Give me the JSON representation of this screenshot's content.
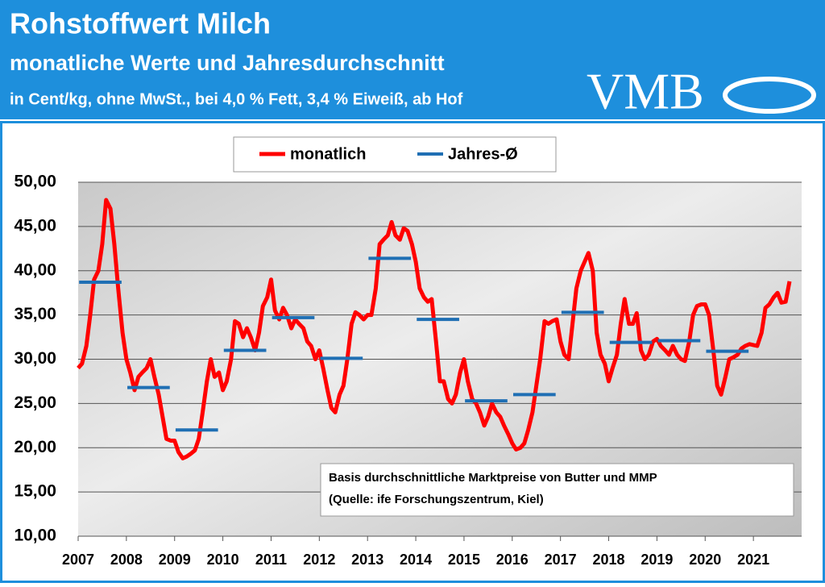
{
  "header": {
    "title": "Rohstoffwert Milch",
    "subtitle": "monatliche Werte und Jahresdurchschnitt",
    "unit_note": "in Cent/kg, ohne MwSt., bei 4,0 % Fett, 3,4 % Eiweiß, ab Hof",
    "logo": "VMB"
  },
  "chart_data": {
    "type": "line",
    "annotation": [
      "Basis durchschnittliche  Marktpreise  von Butter und MMP",
      "(Quelle: ife Forschungszentrum,  Kiel)"
    ],
    "xlim": [
      2007,
      2022
    ],
    "xticks": [
      2007,
      2008,
      2009,
      2010,
      2011,
      2012,
      2013,
      2014,
      2015,
      2016,
      2017,
      2018,
      2019,
      2020,
      2021
    ],
    "ylim": [
      10,
      50
    ],
    "yticks": [
      {
        "value": 10,
        "label": "10,00"
      },
      {
        "value": 15,
        "label": "15,00"
      },
      {
        "value": 20,
        "label": "20,00"
      },
      {
        "value": 25,
        "label": "25,00"
      },
      {
        "value": 30,
        "label": "30,00"
      },
      {
        "value": 35,
        "label": "35,00"
      },
      {
        "value": 40,
        "label": "40,00"
      },
      {
        "value": 45,
        "label": "45,00"
      },
      {
        "value": 50,
        "label": "50,00"
      }
    ],
    "grid": true,
    "legend": "top",
    "series": [
      {
        "name": "monatlich",
        "color": "#ff0000",
        "x": [
          2007,
          2007.08,
          2007.17,
          2007.25,
          2007.33,
          2007.42,
          2007.5,
          2007.58,
          2007.67,
          2007.75,
          2007.83,
          2007.92,
          2008,
          2008.08,
          2008.17,
          2008.25,
          2008.33,
          2008.42,
          2008.5,
          2008.58,
          2008.67,
          2008.75,
          2008.83,
          2008.92,
          2009,
          2009.08,
          2009.17,
          2009.25,
          2009.33,
          2009.42,
          2009.5,
          2009.58,
          2009.67,
          2009.75,
          2009.83,
          2009.92,
          2010,
          2010.08,
          2010.17,
          2010.25,
          2010.33,
          2010.42,
          2010.5,
          2010.58,
          2010.67,
          2010.75,
          2010.83,
          2010.92,
          2011,
          2011.08,
          2011.17,
          2011.25,
          2011.33,
          2011.42,
          2011.5,
          2011.58,
          2011.67,
          2011.75,
          2011.83,
          2011.92,
          2012,
          2012.08,
          2012.17,
          2012.25,
          2012.33,
          2012.42,
          2012.5,
          2012.58,
          2012.67,
          2012.75,
          2012.83,
          2012.92,
          2013,
          2013.08,
          2013.17,
          2013.25,
          2013.33,
          2013.42,
          2013.5,
          2013.58,
          2013.67,
          2013.75,
          2013.83,
          2013.92,
          2014,
          2014.08,
          2014.17,
          2014.25,
          2014.33,
          2014.42,
          2014.5,
          2014.58,
          2014.67,
          2014.75,
          2014.83,
          2014.92,
          2015,
          2015.08,
          2015.17,
          2015.25,
          2015.33,
          2015.42,
          2015.5,
          2015.58,
          2015.67,
          2015.75,
          2015.83,
          2015.92,
          2016,
          2016.08,
          2016.17,
          2016.25,
          2016.33,
          2016.42,
          2016.5,
          2016.58,
          2016.67,
          2016.75,
          2016.83,
          2016.92,
          2017,
          2017.08,
          2017.17,
          2017.25,
          2017.33,
          2017.42,
          2017.5,
          2017.58,
          2017.67,
          2017.75,
          2017.83,
          2017.92,
          2018,
          2018.08,
          2018.17,
          2018.25,
          2018.33,
          2018.42,
          2018.5,
          2018.58,
          2018.67,
          2018.75,
          2018.83,
          2018.92,
          2019,
          2019.08,
          2019.17,
          2019.25,
          2019.33,
          2019.42,
          2019.5,
          2019.58,
          2019.67,
          2019.75,
          2019.83,
          2019.92,
          2020,
          2020.08,
          2020.17,
          2020.25,
          2020.33,
          2020.42,
          2020.5,
          2020.58,
          2020.67,
          2020.75,
          2020.83,
          2020.92,
          2021,
          2021.08,
          2021.17,
          2021.25,
          2021.33,
          2021.42,
          2021.5,
          2021.58,
          2021.67,
          2021.75
        ],
        "values": [
          29,
          29.5,
          31.5,
          35,
          39,
          40,
          43,
          48,
          47,
          43,
          38,
          33,
          30,
          28.5,
          26.5,
          28,
          28.5,
          29,
          30,
          28,
          26,
          23.5,
          21,
          20.8,
          20.8,
          19.5,
          18.8,
          19,
          19.3,
          19.7,
          21,
          24,
          27.5,
          30,
          28,
          28.5,
          26.5,
          27.5,
          30,
          34.3,
          34,
          32.5,
          33.5,
          32.5,
          31,
          33,
          36,
          37,
          39,
          35.5,
          34.5,
          35.8,
          35,
          33.5,
          34.5,
          34,
          33.5,
          32,
          31.5,
          30,
          31,
          29,
          26.5,
          24.5,
          24,
          26,
          27,
          30,
          34,
          35.3,
          35,
          34.5,
          35,
          35,
          38,
          43,
          43.5,
          44,
          45.5,
          44,
          43.5,
          44.8,
          44.5,
          43,
          41,
          38,
          37,
          36.5,
          36.8,
          32,
          27.5,
          27.5,
          25.5,
          25,
          26,
          28.5,
          30,
          27.5,
          25.5,
          25,
          24,
          22.5,
          23.5,
          25,
          24,
          23.5,
          22.5,
          21.5,
          20.5,
          19.8,
          20,
          20.5,
          22,
          24,
          27,
          30,
          34.3,
          34,
          34.3,
          34.5,
          32,
          30.5,
          30,
          34,
          38,
          40,
          41,
          42,
          40,
          33,
          30.5,
          29.5,
          27.5,
          29,
          30.5,
          34,
          36.8,
          34,
          34,
          35.2,
          31,
          30,
          30.5,
          32,
          32.3,
          31.5,
          31,
          30.5,
          31.5,
          30.5,
          30,
          29.8,
          32,
          35,
          36,
          36.2,
          36.2,
          35,
          31,
          27,
          26,
          28,
          30,
          30.2,
          30.5,
          31.2,
          31.5,
          31.7,
          31.6,
          31.5,
          33,
          35.8,
          36.2,
          37,
          37.5,
          36.4,
          36.5,
          38.8
        ]
      },
      {
        "name": "Jahres-Ø",
        "color": "#1f6fb4",
        "x": [
          2007,
          2008,
          2009,
          2010,
          2011,
          2012,
          2013,
          2014,
          2015,
          2016,
          2017,
          2018,
          2019,
          2020
        ],
        "values": [
          38.7,
          26.8,
          22.0,
          31.0,
          34.7,
          30.1,
          41.4,
          34.5,
          25.3,
          26.0,
          35.3,
          31.9,
          32.1,
          30.9
        ]
      }
    ]
  }
}
